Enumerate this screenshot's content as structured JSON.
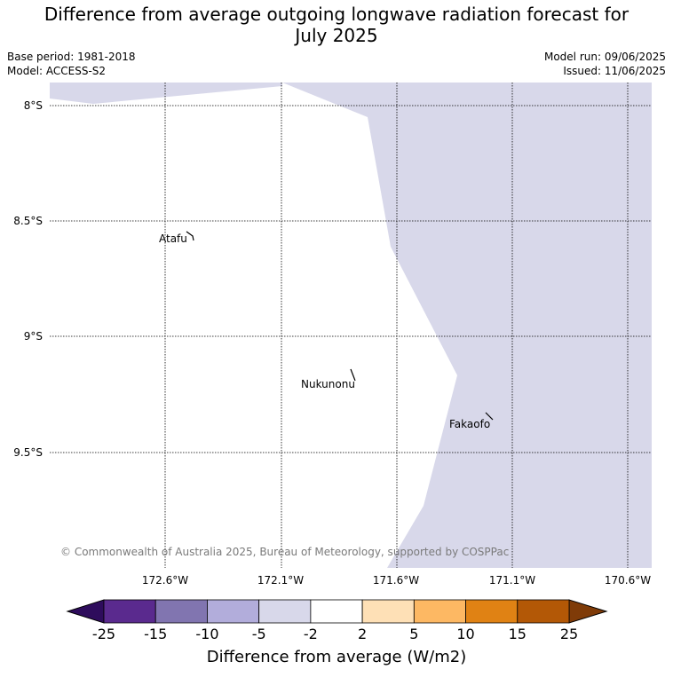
{
  "title_line1": "Difference from average outgoing longwave radiation forecast for",
  "title_line2": "July 2025",
  "meta_left": [
    "Base period: 1981-2018",
    "Model: ACCESS-S2"
  ],
  "meta_right": [
    "Model run: 09/06/2025",
    "Issued: 11/06/2025"
  ],
  "map": {
    "lat_labels": [
      "8°S",
      "8.5°S",
      "9°S",
      "9.5°S"
    ],
    "lon_labels": [
      "172.6°W",
      "172.1°W",
      "171.6°W",
      "171.1°W",
      "170.6°W"
    ],
    "places": [
      "Atafu",
      "Nukunonu",
      "Fakaofo"
    ],
    "anomaly_color": "#d8d8ea",
    "credit": "© Commonwealth of Australia 2025, Bureau of Meteorology, supported by COSPPac"
  },
  "colorbar": {
    "ticks": [
      "-25",
      "-15",
      "-10",
      "-5",
      "-2",
      "2",
      "5",
      "10",
      "15",
      "25"
    ],
    "colors": [
      "#2e0c5c",
      "#5a2a8e",
      "#8175b0",
      "#b2addb",
      "#d8d8ea",
      "#ffffff",
      "#fee0b6",
      "#fdb863",
      "#e08214",
      "#b35806",
      "#7f3b08"
    ],
    "title": "Difference from average (W/m2)"
  }
}
